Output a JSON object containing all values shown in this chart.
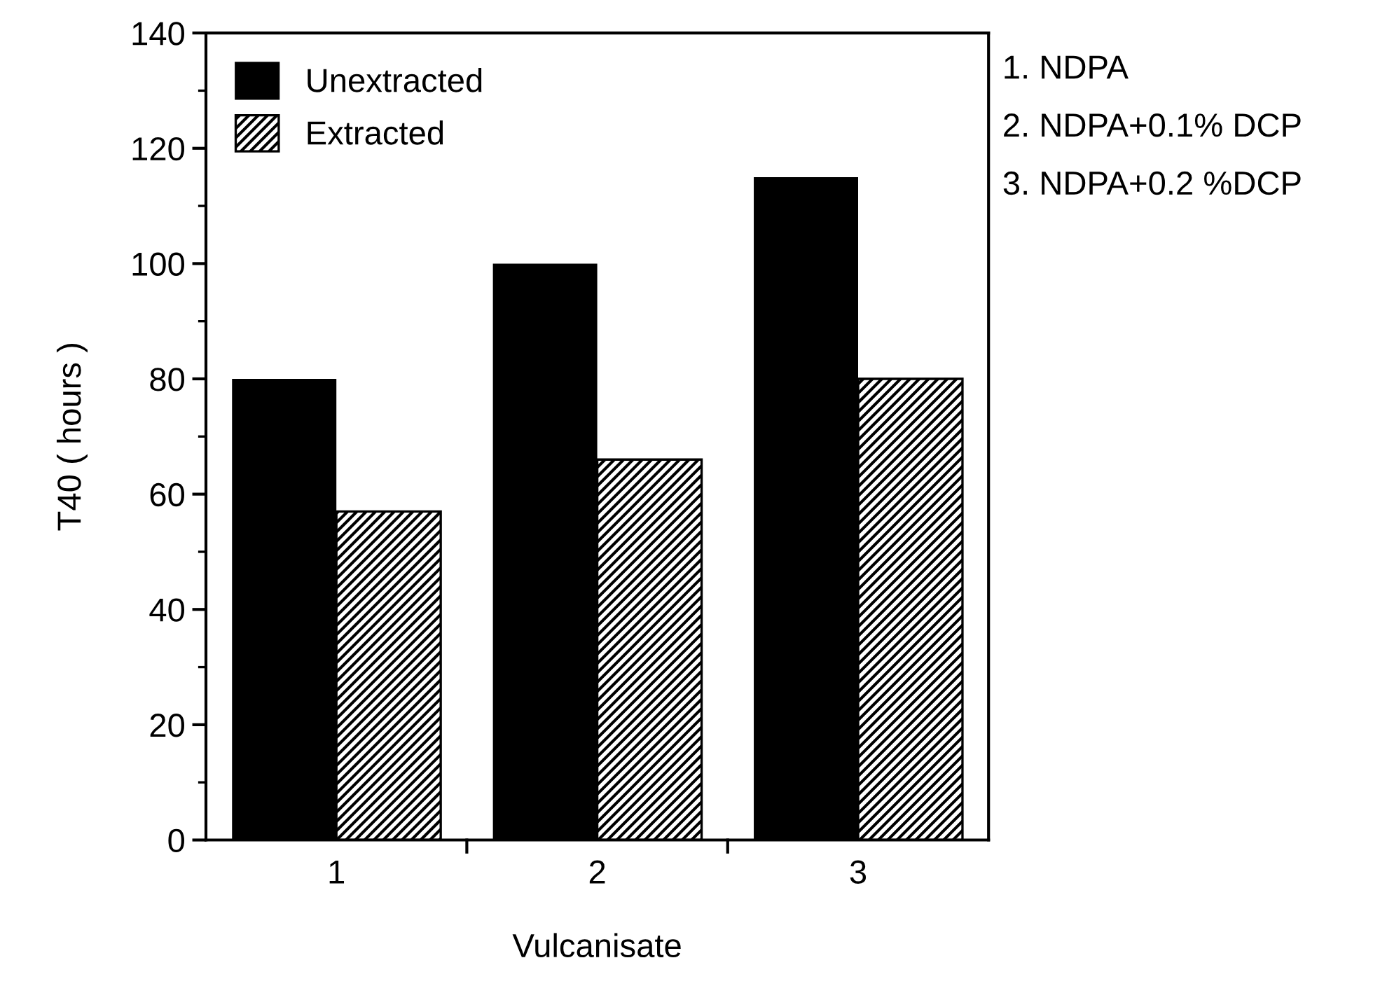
{
  "chart_data": {
    "type": "bar",
    "xlabel": "Vulcanisate",
    "ylabel": "T40 ( hours )",
    "categories": [
      "1",
      "2",
      "3"
    ],
    "series": [
      {
        "name": "Unextracted",
        "color": "#000000",
        "values": [
          80,
          100,
          115
        ]
      },
      {
        "name": "Extracted",
        "color": "#000000",
        "values": [
          57,
          66,
          80
        ]
      }
    ],
    "ylim": [
      0,
      140
    ],
    "yticks": [
      0,
      20,
      40,
      60,
      80,
      100,
      120,
      140
    ],
    "grid": false,
    "legend": "top left",
    "annotations": [
      "1. NDPA",
      "2. NDPA+0.1% DCP",
      "3. NDPA+0.2 %DCP"
    ]
  }
}
